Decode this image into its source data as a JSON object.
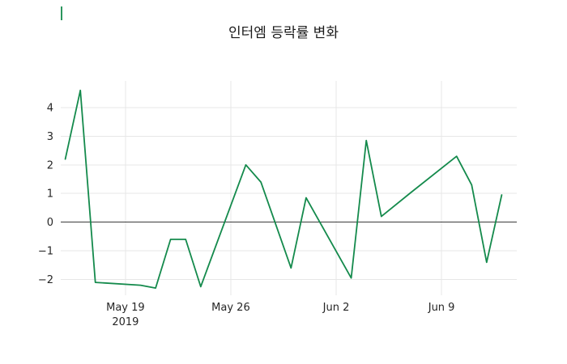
{
  "chart_data": {
    "type": "line",
    "title": "인터엠 등락률 변화",
    "series_name": "등락률",
    "legend": "none",
    "grid": true,
    "zero_line": true,
    "ylim": [
      -2.55,
      4.93
    ],
    "xlim": [
      -0.3,
      30.0
    ],
    "yticks": [
      -2,
      -1,
      0,
      1,
      2,
      3,
      4
    ],
    "xticks": [
      {
        "label": "May 19",
        "sublabel": "2019",
        "day_offset": 4
      },
      {
        "label": "May 26",
        "sublabel": "",
        "day_offset": 11
      },
      {
        "label": "Jun 2",
        "sublabel": "",
        "day_offset": 18
      },
      {
        "label": "Jun 9",
        "sublabel": "",
        "day_offset": 25
      }
    ],
    "points": [
      {
        "date": "May 15",
        "day_offset": 0,
        "value": 2.2
      },
      {
        "date": "May 16",
        "day_offset": 1,
        "value": 4.6
      },
      {
        "date": "May 17",
        "day_offset": 2,
        "value": -2.1
      },
      {
        "date": "May 20",
        "day_offset": 5,
        "value": -2.2
      },
      {
        "date": "May 21",
        "day_offset": 6,
        "value": -2.3
      },
      {
        "date": "May 22",
        "day_offset": 7,
        "value": -0.6
      },
      {
        "date": "May 23",
        "day_offset": 8,
        "value": -0.6
      },
      {
        "date": "May 24",
        "day_offset": 9,
        "value": -2.25
      },
      {
        "date": "May 27",
        "day_offset": 12,
        "value": 2.0
      },
      {
        "date": "May 28",
        "day_offset": 13,
        "value": 1.4
      },
      {
        "date": "May 30",
        "day_offset": 15,
        "value": -1.6
      },
      {
        "date": "May 31",
        "day_offset": 16,
        "value": 0.85
      },
      {
        "date": "Jun 3",
        "day_offset": 19,
        "value": -1.95
      },
      {
        "date": "Jun 4",
        "day_offset": 20,
        "value": 2.85
      },
      {
        "date": "Jun 5",
        "day_offset": 21,
        "value": 0.2
      },
      {
        "date": "Jun 7",
        "day_offset": 23,
        "value": 1.05
      },
      {
        "date": "Jun 10",
        "day_offset": 26,
        "value": 2.3
      },
      {
        "date": "Jun 11",
        "day_offset": 27,
        "value": 1.3
      },
      {
        "date": "Jun 12",
        "day_offset": 28,
        "value": -1.4
      },
      {
        "date": "Jun 13",
        "day_offset": 29,
        "value": 0.95
      }
    ],
    "colors": {
      "line": "#148a4c",
      "grid": "#e7e7e7",
      "zero_line": "#3b3b3b",
      "text": "#262626",
      "background": "#ffffff"
    }
  }
}
